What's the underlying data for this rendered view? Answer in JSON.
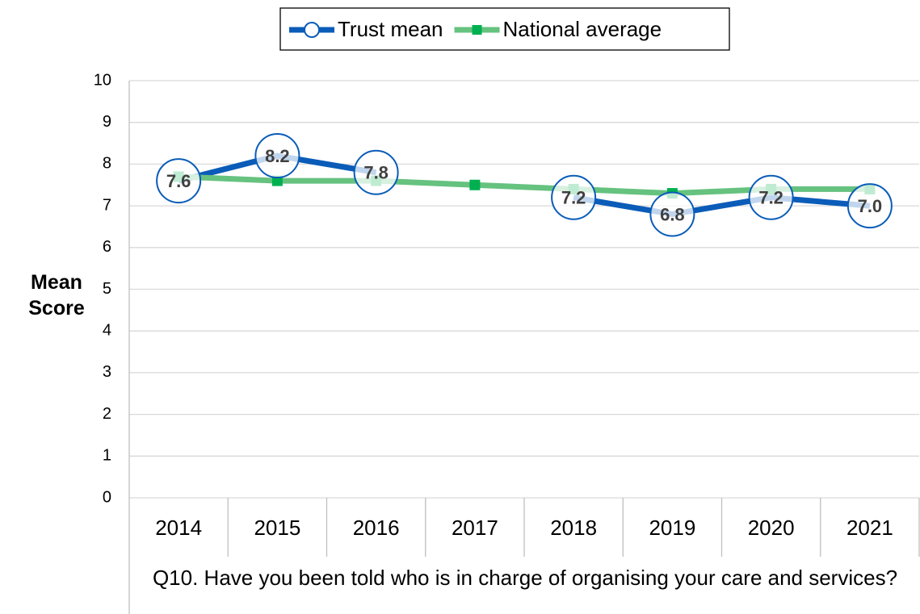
{
  "chart_data": {
    "type": "line",
    "x_label": "Q10. Have you been told who is in charge of organising your care and services?",
    "y_label": "Mean Score",
    "categories": [
      "2014",
      "2015",
      "2016",
      "2017",
      "2018",
      "2019",
      "2020",
      "2021"
    ],
    "series": [
      {
        "name": "Trust mean",
        "color": "#0a5cb8",
        "marker": "circle",
        "values": [
          7.6,
          8.2,
          7.8,
          null,
          7.2,
          6.8,
          7.2,
          7.0
        ],
        "value_labels": [
          "7.6",
          "8.2",
          "7.8",
          null,
          "7.2",
          "6.8",
          "7.2",
          "7.0"
        ]
      },
      {
        "name": "National average",
        "color": "#66c27f",
        "marker_color": "#00b050",
        "marker": "square",
        "values": [
          7.7,
          7.6,
          7.6,
          7.5,
          7.4,
          7.3,
          7.4,
          7.4
        ]
      }
    ],
    "ylim": [
      0,
      10
    ],
    "yticks": [
      0,
      1,
      2,
      3,
      4,
      5,
      6,
      7,
      8,
      9,
      10
    ],
    "grid": true,
    "legend": "top"
  }
}
